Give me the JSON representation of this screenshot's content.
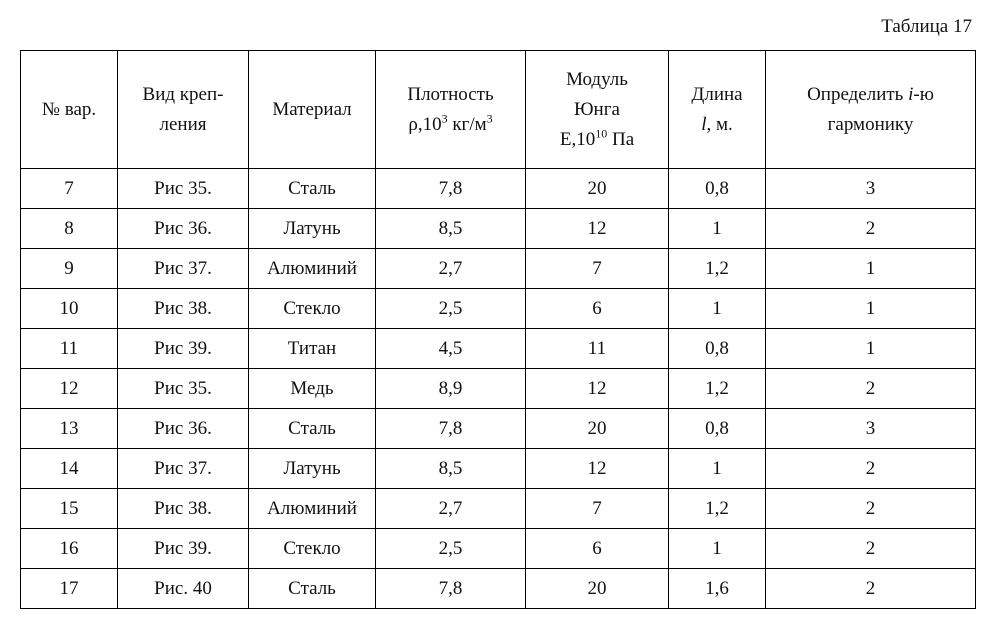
{
  "caption": "Таблица 17",
  "table": {
    "header": [
      [
        [
          "№ вар."
        ]
      ],
      [
        [
          "Вид креп-"
        ],
        [
          "ления"
        ]
      ],
      [
        [
          "Материал"
        ]
      ],
      [
        [
          "Плотность"
        ],
        [
          "ρ,10",
          "3",
          " кг/м",
          "3"
        ]
      ],
      [
        [
          "Модуль"
        ],
        [
          "Юнга"
        ],
        [
          "E,10",
          "10",
          " Па"
        ]
      ],
      [
        [
          "Длина"
        ],
        [
          "l",
          ", м."
        ]
      ],
      [
        [
          "Определить ",
          "i",
          "-ю"
        ],
        [
          "гармонику"
        ]
      ]
    ],
    "rows": [
      [
        "7",
        "Рис 35.",
        "Сталь",
        "7,8",
        "20",
        "0,8",
        "3"
      ],
      [
        "8",
        "Рис 36.",
        "Латунь",
        "8,5",
        "12",
        "1",
        "2"
      ],
      [
        "9",
        "Рис 37.",
        "Алюминий",
        "2,7",
        "7",
        "1,2",
        "1"
      ],
      [
        "10",
        "Рис 38.",
        "Стекло",
        "2,5",
        "6",
        "1",
        "1"
      ],
      [
        "11",
        "Рис 39.",
        "Титан",
        "4,5",
        "11",
        "0,8",
        "1"
      ],
      [
        "12",
        "Рис 35.",
        "Медь",
        "8,9",
        "12",
        "1,2",
        "2"
      ],
      [
        "13",
        "Рис 36.",
        "Сталь",
        "7,8",
        "20",
        "0,8",
        "3"
      ],
      [
        "14",
        "Рис 37.",
        "Латунь",
        "8,5",
        "12",
        "1",
        "2"
      ],
      [
        "15",
        "Рис 38.",
        "Алюминий",
        "2,7",
        "7",
        "1,2",
        "2"
      ],
      [
        "16",
        "Рис 39.",
        "Стекло",
        "2,5",
        "6",
        "1",
        "2"
      ],
      [
        "17",
        "Рис. 40",
        "Сталь",
        "7,8",
        "20",
        "1,6",
        "2"
      ]
    ]
  }
}
